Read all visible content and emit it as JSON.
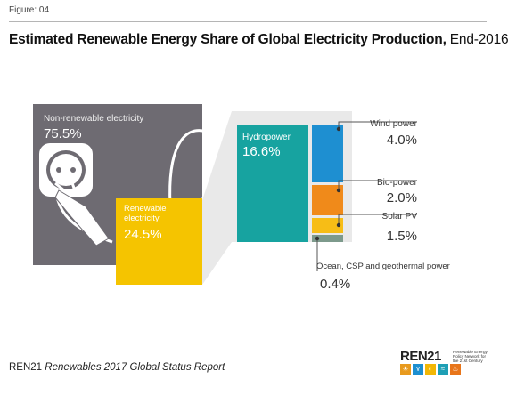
{
  "header": {
    "figure_label": "Figure: 04",
    "title_bold": "Estimated Renewable Energy Share of Global Electricity Production,",
    "title_light": " End-2016"
  },
  "footer": {
    "org": "REN21",
    "report": "Renewables 2017 Global Status Report"
  },
  "logo": {
    "wordmark": "REN21",
    "tagline": "Renewable Energy Policy Network for the 21st Century",
    "icons": [
      "sun-icon",
      "wind-icon",
      "bio-icon",
      "water-icon",
      "flame-icon"
    ],
    "icon_glyphs": [
      "☀",
      "⋎",
      "◐",
      "≈",
      "♨"
    ],
    "icon_colors": [
      "#e89a1e",
      "#1d8fd0",
      "#f2b705",
      "#1e9fb5",
      "#e8751a"
    ]
  },
  "colors": {
    "non_renewable": "#6e6b72",
    "renewable": "#f5c400",
    "hydropower": "#17a3a0",
    "wind": "#1e8fd1",
    "bio": "#f08a1a",
    "solar": "#f7bd16",
    "ocean": "#7d9a8c"
  },
  "chart_data": {
    "type": "treemap",
    "title": "Estimated Renewable Energy Share of Global Electricity Production, End-2016",
    "unit": "%",
    "total": [
      {
        "name": "Non-renewable electricity",
        "value": 75.5,
        "label": "75.5%"
      },
      {
        "name": "Renewable electricity",
        "value": 24.5,
        "label": "24.5%"
      }
    ],
    "renewable_breakdown": [
      {
        "name": "Hydropower",
        "value": 16.6,
        "label": "16.6%"
      },
      {
        "name": "Wind power",
        "value": 4.0,
        "label": "4.0%"
      },
      {
        "name": "Bio-power",
        "value": 2.0,
        "label": "2.0%"
      },
      {
        "name": "Solar PV",
        "value": 1.5,
        "label": "1.5%"
      },
      {
        "name": "Ocean, CSP and geothermal power",
        "value": 0.4,
        "label": "0.4%"
      }
    ]
  }
}
